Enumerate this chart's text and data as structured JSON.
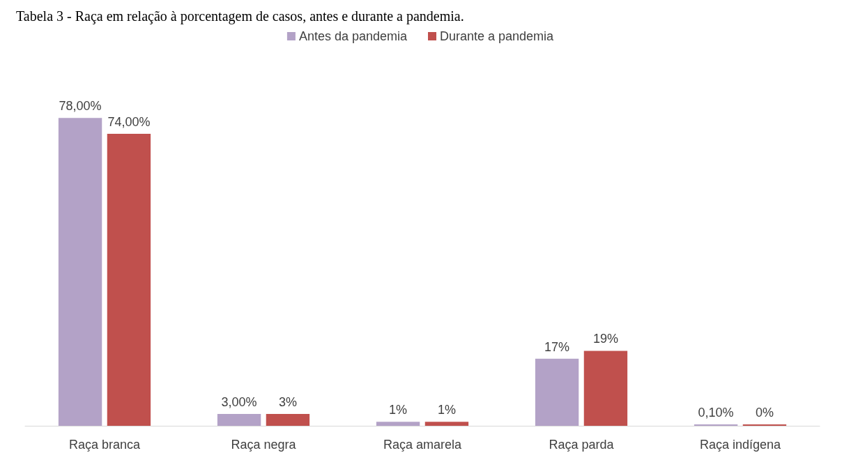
{
  "chart_data": {
    "type": "bar",
    "title": "Tabela 3 - Raça em relação à porcentagem de casos, antes e durante a pandemia.",
    "categories": [
      "Raça branca",
      "Raça negra",
      "Raça amarela",
      "Raça parda",
      "Raça indígena"
    ],
    "series": [
      {
        "name": "Antes da pandemia",
        "color": "#b3a2c7",
        "values": [
          78,
          3,
          1,
          17,
          0.1
        ],
        "value_labels": [
          "78,00%",
          "3,00%",
          "1%",
          "17%",
          "0,10%"
        ]
      },
      {
        "name": "Durante a pandemia",
        "color": "#c0504d",
        "values": [
          74,
          3,
          1,
          19,
          0
        ],
        "value_labels": [
          "74,00%",
          "3%",
          "1%",
          "19%",
          "0%"
        ]
      }
    ],
    "legend": "top"
  }
}
